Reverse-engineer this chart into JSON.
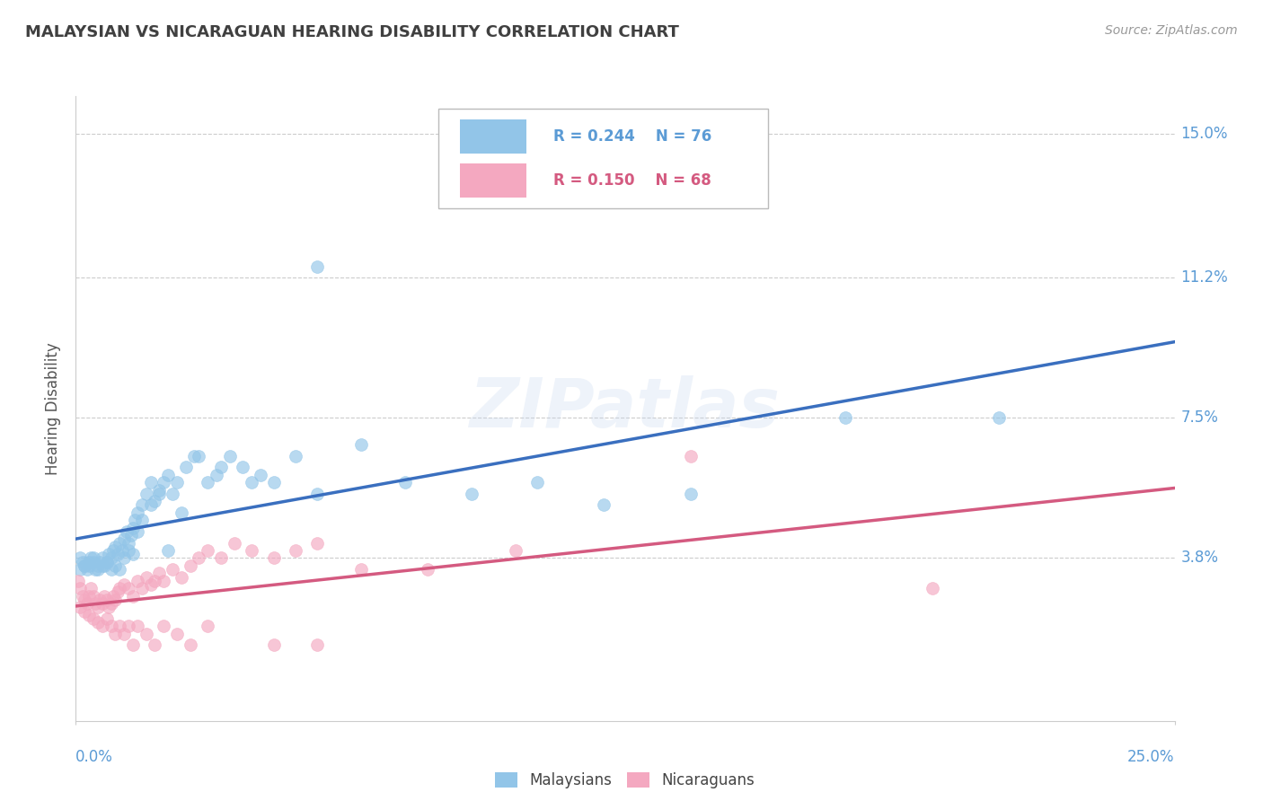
{
  "title": "MALAYSIAN VS NICARAGUAN HEARING DISABILITY CORRELATION CHART",
  "source": "Source: ZipAtlas.com",
  "ylabel": "Hearing Disability",
  "xlim": [
    0.0,
    25.0
  ],
  "ylim": [
    -0.5,
    16.0
  ],
  "yticks": [
    3.8,
    7.5,
    11.2,
    15.0
  ],
  "ytick_labels": [
    "3.8%",
    "7.5%",
    "11.2%",
    "15.0%"
  ],
  "blue_color": "#92C5E8",
  "pink_color": "#F4A8C0",
  "blue_line_color": "#3A6FBF",
  "pink_line_color": "#D45A80",
  "title_color": "#404040",
  "axis_label_color": "#5B9BD5",
  "grid_color": "#CCCCCC",
  "malaysian_x": [
    0.1,
    0.15,
    0.2,
    0.25,
    0.3,
    0.35,
    0.4,
    0.45,
    0.5,
    0.55,
    0.6,
    0.65,
    0.7,
    0.75,
    0.8,
    0.85,
    0.9,
    0.95,
    1.0,
    1.05,
    1.1,
    1.15,
    1.2,
    1.25,
    1.3,
    1.35,
    1.4,
    1.5,
    1.6,
    1.7,
    1.8,
    1.9,
    2.0,
    2.1,
    2.2,
    2.3,
    2.5,
    2.7,
    3.0,
    3.2,
    3.5,
    3.8,
    4.2,
    4.5,
    5.0,
    5.5,
    6.5,
    7.5,
    9.0,
    10.5,
    12.0,
    14.0,
    17.5,
    21.0,
    0.1,
    0.2,
    0.3,
    0.4,
    0.5,
    0.6,
    0.7,
    0.8,
    0.9,
    1.0,
    1.1,
    1.2,
    1.3,
    1.4,
    1.5,
    1.7,
    1.9,
    2.1,
    2.4,
    2.8,
    3.3,
    4.0,
    5.5
  ],
  "malaysian_y": [
    3.8,
    3.7,
    3.6,
    3.5,
    3.6,
    3.8,
    3.7,
    3.5,
    3.6,
    3.7,
    3.8,
    3.6,
    3.7,
    3.9,
    3.8,
    4.0,
    4.1,
    3.9,
    4.2,
    4.0,
    4.3,
    4.5,
    4.2,
    4.4,
    4.6,
    4.8,
    5.0,
    5.2,
    5.5,
    5.8,
    5.3,
    5.6,
    5.8,
    6.0,
    5.5,
    5.8,
    6.2,
    6.5,
    5.8,
    6.0,
    6.5,
    6.2,
    6.0,
    5.8,
    6.5,
    5.5,
    6.8,
    5.8,
    5.5,
    5.8,
    5.2,
    5.5,
    7.5,
    7.5,
    3.5,
    3.6,
    3.7,
    3.8,
    3.5,
    3.6,
    3.7,
    3.5,
    3.6,
    3.5,
    3.8,
    4.0,
    3.9,
    4.5,
    4.8,
    5.2,
    5.5,
    4.0,
    5.0,
    6.5,
    6.2,
    5.8,
    11.5
  ],
  "nicaraguan_x": [
    0.05,
    0.1,
    0.15,
    0.2,
    0.25,
    0.3,
    0.35,
    0.4,
    0.45,
    0.5,
    0.55,
    0.6,
    0.65,
    0.7,
    0.75,
    0.8,
    0.85,
    0.9,
    0.95,
    1.0,
    1.1,
    1.2,
    1.3,
    1.4,
    1.5,
    1.6,
    1.7,
    1.8,
    1.9,
    2.0,
    2.2,
    2.4,
    2.6,
    2.8,
    3.0,
    3.3,
    3.6,
    4.0,
    4.5,
    5.0,
    5.5,
    6.5,
    8.0,
    10.0,
    14.0,
    19.5,
    0.1,
    0.2,
    0.3,
    0.4,
    0.5,
    0.6,
    0.7,
    0.8,
    0.9,
    1.0,
    1.1,
    1.2,
    1.3,
    1.4,
    1.6,
    1.8,
    2.0,
    2.3,
    2.6,
    3.0,
    4.5,
    5.5
  ],
  "nicaraguan_y": [
    3.2,
    3.0,
    2.8,
    2.7,
    2.6,
    2.8,
    3.0,
    2.8,
    2.6,
    2.5,
    2.7,
    2.6,
    2.8,
    2.7,
    2.5,
    2.6,
    2.8,
    2.7,
    2.9,
    3.0,
    3.1,
    3.0,
    2.8,
    3.2,
    3.0,
    3.3,
    3.1,
    3.2,
    3.4,
    3.2,
    3.5,
    3.3,
    3.6,
    3.8,
    4.0,
    3.8,
    4.2,
    4.0,
    3.8,
    4.0,
    4.2,
    3.5,
    3.5,
    4.0,
    6.5,
    3.0,
    2.5,
    2.4,
    2.3,
    2.2,
    2.1,
    2.0,
    2.2,
    2.0,
    1.8,
    2.0,
    1.8,
    2.0,
    1.5,
    2.0,
    1.8,
    1.5,
    2.0,
    1.8,
    1.5,
    2.0,
    1.5,
    1.5
  ]
}
